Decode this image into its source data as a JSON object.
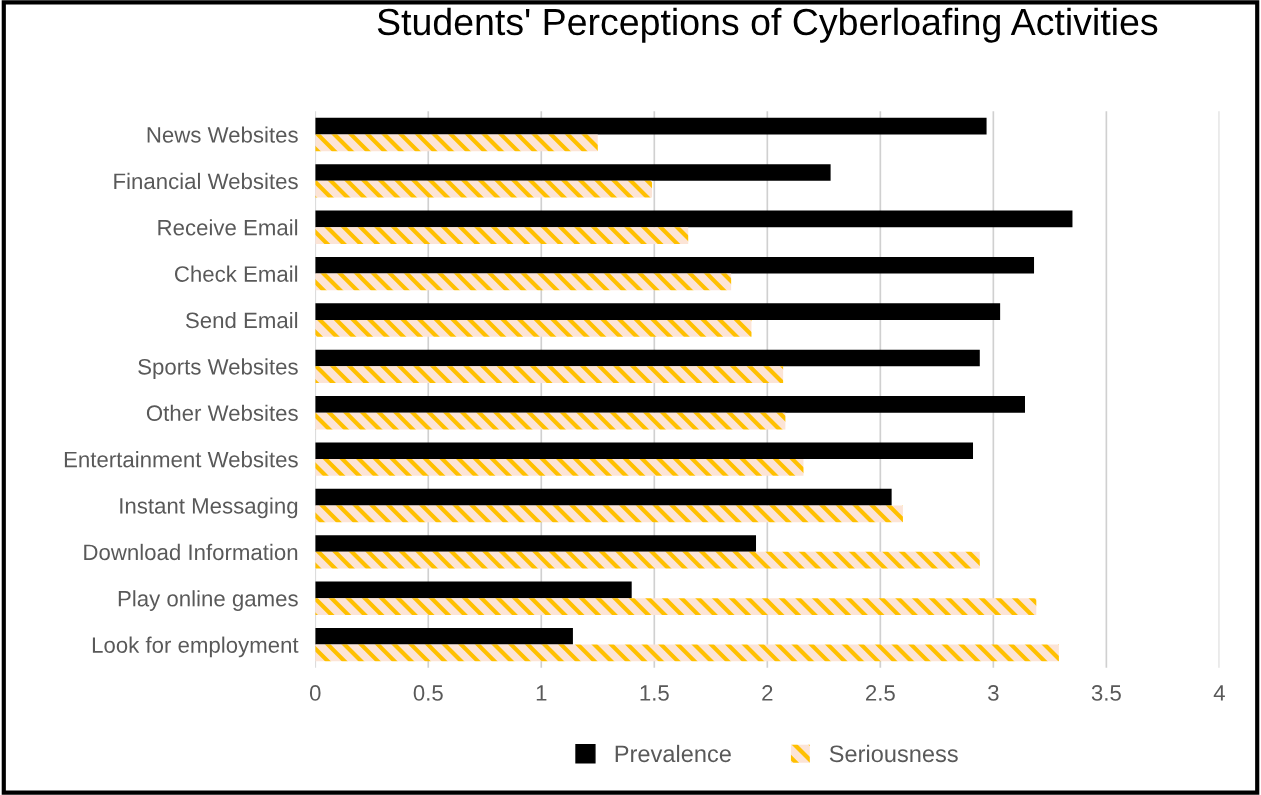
{
  "chart_data": {
    "type": "bar",
    "orientation": "horizontal",
    "title": "Students' Perceptions of Cyberloafing Activities",
    "categories": [
      "News Websites",
      "Financial Websites",
      "Receive Email",
      "Check Email",
      "Send Email",
      "Sports Websites",
      "Other Websites",
      "Entertainment Websites",
      "Instant Messaging",
      "Download Information",
      "Play online games",
      "Look for employment"
    ],
    "series": [
      {
        "name": "Prevalence",
        "color": "#000000",
        "values": [
          2.97,
          2.28,
          3.35,
          3.18,
          3.03,
          2.94,
          3.14,
          2.91,
          2.55,
          1.95,
          1.4,
          1.14
        ]
      },
      {
        "name": "Seriousness",
        "color": "#ffc000",
        "values": [
          1.25,
          1.49,
          1.65,
          1.84,
          1.93,
          2.07,
          2.08,
          2.16,
          2.6,
          2.94,
          3.19,
          3.29
        ]
      }
    ],
    "xlim": [
      0,
      4
    ],
    "xticks": [
      0,
      0.5,
      1,
      1.5,
      2,
      2.5,
      3,
      3.5,
      4
    ],
    "grid": "x",
    "legend": "bottom"
  }
}
